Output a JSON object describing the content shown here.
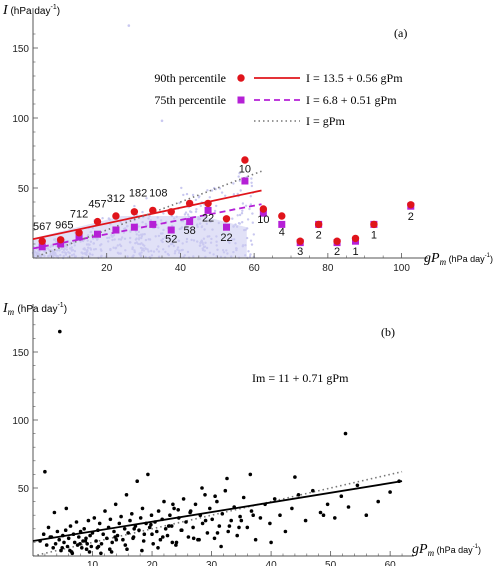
{
  "chart_data": [
    {
      "panel_label": "(a)",
      "type": "scatter",
      "ylabel_main": "I",
      "ylabel_unit": "(hPa day",
      "xlabel_main": "gP",
      "xlabel_sub": "m",
      "xlabel_unit": "(hPa day",
      "unit_exp": "-1",
      "unit_close": ")",
      "xlim": [
        0,
        105
      ],
      "ylim": [
        0,
        170
      ],
      "xticks": [
        "20",
        "40",
        "60",
        "80",
        "100"
      ],
      "yticks": [
        "50",
        "100",
        "150"
      ],
      "xtick_values": [
        20,
        40,
        60,
        80,
        100
      ],
      "ytick_values": [
        50,
        100,
        150
      ],
      "colors": {
        "p90": "#e0141b",
        "p75": "#b520d6",
        "cloud": "#c9c8f0",
        "gray_line": "#777777"
      },
      "legend": {
        "p90_label": "90th percentile",
        "p75_label": "75th percentile",
        "p90_eq": "I = 13.5 + 0.56 gPm",
        "p75_eq": "I = 6.8 + 0.51 gPm",
        "one_eq": "I = gPm"
      },
      "series": [
        {
          "name": "90th percentile",
          "x": [
            2.5,
            7.5,
            12.5,
            17.5,
            22.5,
            27.5,
            32.5,
            37.5,
            42.5,
            47.5,
            52.5,
            57.5,
            62.5,
            67.5,
            72.5,
            77.5,
            82.5,
            87.5,
            92.5,
            102.5
          ],
          "y": [
            12,
            13,
            18,
            26,
            30,
            33,
            34,
            33,
            39,
            39,
            28,
            70,
            35,
            30,
            12,
            24,
            12,
            14,
            24,
            38
          ]
        },
        {
          "name": "75th percentile",
          "x": [
            2.5,
            7.5,
            12.5,
            17.5,
            22.5,
            27.5,
            32.5,
            37.5,
            42.5,
            47.5,
            52.5,
            57.5,
            62.5,
            67.5,
            72.5,
            77.5,
            82.5,
            87.5,
            92.5,
            102.5
          ],
          "y": [
            8,
            10,
            15,
            17,
            20,
            22,
            24,
            20,
            26,
            34,
            22,
            55,
            32,
            24,
            11,
            24,
            11,
            12,
            24,
            37
          ]
        }
      ],
      "fits": [
        {
          "name": "90th fit",
          "intercept": 13.5,
          "slope": 0.56,
          "x_range": [
            0,
            62
          ]
        },
        {
          "name": "75th fit",
          "intercept": 6.8,
          "slope": 0.51,
          "x_range": [
            0,
            62
          ]
        },
        {
          "name": "one-to-one",
          "intercept": 0,
          "slope": 1,
          "x_range": [
            0,
            62
          ]
        }
      ],
      "counts": [
        {
          "label": "567",
          "x": 2.5,
          "y": 20
        },
        {
          "label": "965",
          "x": 8.5,
          "y": 21
        },
        {
          "label": "712",
          "x": 12.5,
          "y": 29
        },
        {
          "label": "457",
          "x": 17.5,
          "y": 36
        },
        {
          "label": "312",
          "x": 22.5,
          "y": 40
        },
        {
          "label": "182",
          "x": 28.5,
          "y": 44
        },
        {
          "label": "108",
          "x": 34.0,
          "y": 44
        },
        {
          "label": "52",
          "x": 37.5,
          "y": 11
        },
        {
          "label": "58",
          "x": 42.5,
          "y": 17
        },
        {
          "label": "22",
          "x": 47.5,
          "y": 26
        },
        {
          "label": "22",
          "x": 52.5,
          "y": 12
        },
        {
          "label": "10",
          "x": 57.5,
          "y": 61
        },
        {
          "label": "10",
          "x": 62.5,
          "y": 25
        },
        {
          "label": "4",
          "x": 67.5,
          "y": 16
        },
        {
          "label": "3",
          "x": 72.5,
          "y": 2
        },
        {
          "label": "2",
          "x": 77.5,
          "y": 14
        },
        {
          "label": "2",
          "x": 82.5,
          "y": 2
        },
        {
          "label": "1",
          "x": 87.5,
          "y": 2
        },
        {
          "label": "1",
          "x": 92.5,
          "y": 14
        },
        {
          "label": "2",
          "x": 102.5,
          "y": 27
        }
      ]
    },
    {
      "panel_label": "(b)",
      "type": "scatter",
      "ylabel_main": "I",
      "ylabel_sub": "m",
      "ylabel_unit": "(hPa day",
      "xlabel_main": "gP",
      "xlabel_sub": "m",
      "xlabel_unit": "(hPa day",
      "unit_exp": "-1",
      "unit_close": ")",
      "xlim": [
        0,
        63
      ],
      "ylim": [
        0,
        175
      ],
      "xticks": [
        "10",
        "20",
        "30",
        "40",
        "50",
        "60"
      ],
      "yticks": [
        "50",
        "100",
        "150"
      ],
      "xtick_values": [
        10,
        20,
        30,
        40,
        50,
        60
      ],
      "ytick_values": [
        50,
        100,
        150
      ],
      "colors": {
        "points": "#000000",
        "fit": "#000000",
        "gray_line": "#777777"
      },
      "equation": "Im = 11 + 0.71 gPm",
      "fits": [
        {
          "name": "fit",
          "intercept": 11,
          "slope": 0.71,
          "x_range": [
            0,
            62
          ]
        },
        {
          "name": "one-to-one",
          "intercept": 0,
          "slope": 1,
          "x_range": [
            0,
            62
          ]
        }
      ],
      "points_x": [
        1.2,
        1.8,
        2.3,
        2.6,
        3.1,
        3.4,
        3.8,
        4.1,
        4.4,
        4.7,
        5.0,
        5.2,
        5.5,
        5.8,
        6.0,
        6.3,
        6.5,
        6.8,
        7.0,
        7.3,
        7.5,
        7.7,
        8.0,
        8.2,
        8.4,
        8.6,
        8.9,
        9.1,
        9.3,
        9.6,
        9.8,
        10.0,
        10.3,
        10.6,
        10.9,
        11.2,
        11.5,
        11.8,
        12.1,
        12.4,
        12.7,
        13.0,
        13.3,
        13.6,
        13.9,
        14.2,
        14.5,
        14.8,
        15.1,
        15.4,
        15.7,
        16.0,
        16.3,
        16.6,
        16.9,
        17.2,
        17.5,
        17.8,
        18.1,
        18.4,
        18.7,
        19.0,
        19.3,
        19.6,
        19.9,
        20.2,
        20.5,
        20.8,
        21.1,
        21.4,
        21.7,
        22.0,
        22.3,
        22.6,
        23.0,
        23.3,
        23.7,
        24.1,
        24.5,
        24.9,
        25.3,
        25.7,
        26.1,
        26.5,
        26.9,
        27.3,
        27.7,
        28.1,
        28.5,
        28.9,
        29.3,
        29.7,
        30.1,
        30.5,
        30.9,
        31.3,
        31.8,
        32.3,
        32.8,
        33.3,
        33.8,
        34.3,
        34.8,
        35.4,
        36.0,
        36.7,
        37.4,
        38.2,
        39.0,
        39.8,
        40.6,
        41.5,
        42.4,
        43.5,
        44.6,
        45.8,
        47.0,
        48.3,
        49.5,
        50.7,
        51.8,
        53.0,
        54.5,
        56.0,
        58.0,
        60.0,
        61.5,
        2.0,
        3.6,
        4.9,
        6.2,
        7.9,
        9.5,
        11.0,
        12.9,
        14.0,
        15.5,
        17.0,
        18.6,
        20.0,
        21.8,
        23.4,
        25.0,
        27.0,
        29.0,
        31.0,
        33.0,
        35.0,
        37.0,
        2.9,
        5.6,
        8.8,
        10.8,
        13.8,
        16.8,
        19.8,
        22.8,
        24.4,
        26.4,
        28.4,
        30.6,
        32.6,
        34.6,
        23.5,
        4.5,
        6.6,
        9.0,
        11.4,
        13.2,
        15.8,
        18.3,
        21.0,
        24.0,
        27.9,
        31.6,
        36.5,
        40.0,
        44.0,
        48.8,
        52.5
      ],
      "points_y": [
        11,
        16,
        8,
        21,
        14,
        6,
        9,
        18,
        12,
        4,
        15,
        10,
        19,
        7,
        13,
        22,
        3,
        16,
        10,
        25,
        8,
        14,
        18,
        6,
        11,
        20,
        13,
        9,
        26,
        15,
        7,
        17,
        28,
        11,
        19,
        24,
        9,
        16,
        33,
        13,
        21,
        27,
        10,
        18,
        38,
        15,
        24,
        29,
        12,
        20,
        45,
        17,
        26,
        31,
        14,
        22,
        55,
        19,
        28,
        35,
        16,
        24,
        60,
        21,
        30,
        9,
        25,
        18,
        33,
        12,
        27,
        40,
        20,
        15,
        30,
        22,
        35,
        10,
        28,
        19,
        42,
        25,
        14,
        33,
        21,
        38,
        12,
        30,
        24,
        45,
        17,
        35,
        27,
        13,
        40,
        22,
        31,
        48,
        18,
        26,
        36,
        15,
        29,
        43,
        21,
        33,
        12,
        28,
        38,
        24,
        42,
        30,
        18,
        35,
        45,
        26,
        48,
        32,
        38,
        28,
        44,
        36,
        52,
        30,
        40,
        47,
        55,
        62,
        32,
        6,
        4,
        9,
        3,
        7,
        5,
        12,
        8,
        20,
        11,
        16,
        14,
        10,
        19,
        13,
        26,
        17,
        22,
        26,
        30,
        14,
        35,
        11,
        6,
        14,
        13,
        23,
        22,
        34,
        32,
        50,
        44,
        57,
        21,
        38,
        165,
        2,
        5,
        2,
        3,
        5,
        4,
        6,
        8,
        12,
        7,
        60,
        10,
        58,
        30,
        90,
        26
      ]
    }
  ]
}
